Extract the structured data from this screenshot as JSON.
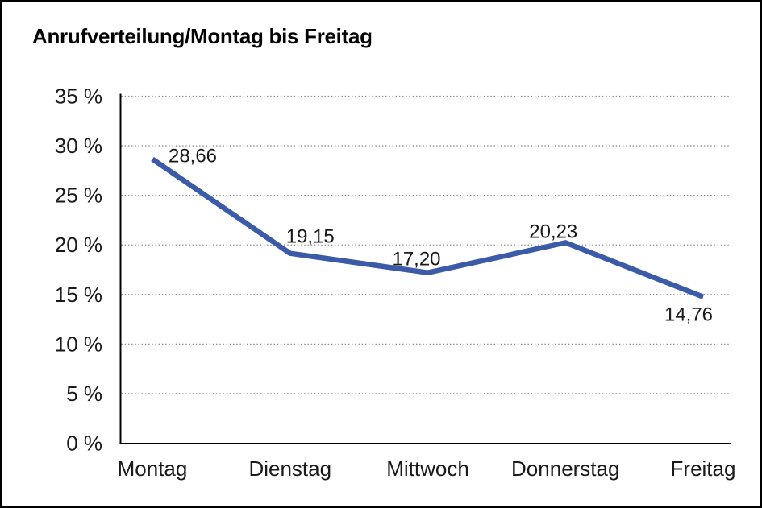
{
  "title": "Anrufverteilung/Montag bis Freitag",
  "frame": {
    "background": "#ffffff",
    "border_color": "#000000"
  },
  "chart_data": {
    "type": "line",
    "title": "Anrufverteilung/Montag bis Freitag",
    "categories": [
      "Montag",
      "Dienstag",
      "Mittwoch",
      "Donnerstag",
      "Freitag"
    ],
    "series": [
      {
        "name": "Anrufverteilung",
        "values": [
          28.66,
          19.15,
          17.2,
          20.23,
          14.76
        ]
      }
    ],
    "point_labels": [
      "28,66",
      "19,15",
      "17,20",
      "20,23",
      "14,76"
    ],
    "xlabel": "",
    "ylabel": "",
    "ylim": [
      0,
      35
    ],
    "ytick_step": 5,
    "ytick_labels": [
      "0 %",
      "5 %",
      "10 %",
      "15 %",
      "20 %",
      "25 %",
      "30 %",
      "35 %"
    ],
    "grid": "horizontal-dotted",
    "legend": "none",
    "colors": {
      "line": "#3B5BA8",
      "gridline": "#8c8c8c",
      "axis": "#000000",
      "text": "#1a1a1a"
    }
  }
}
